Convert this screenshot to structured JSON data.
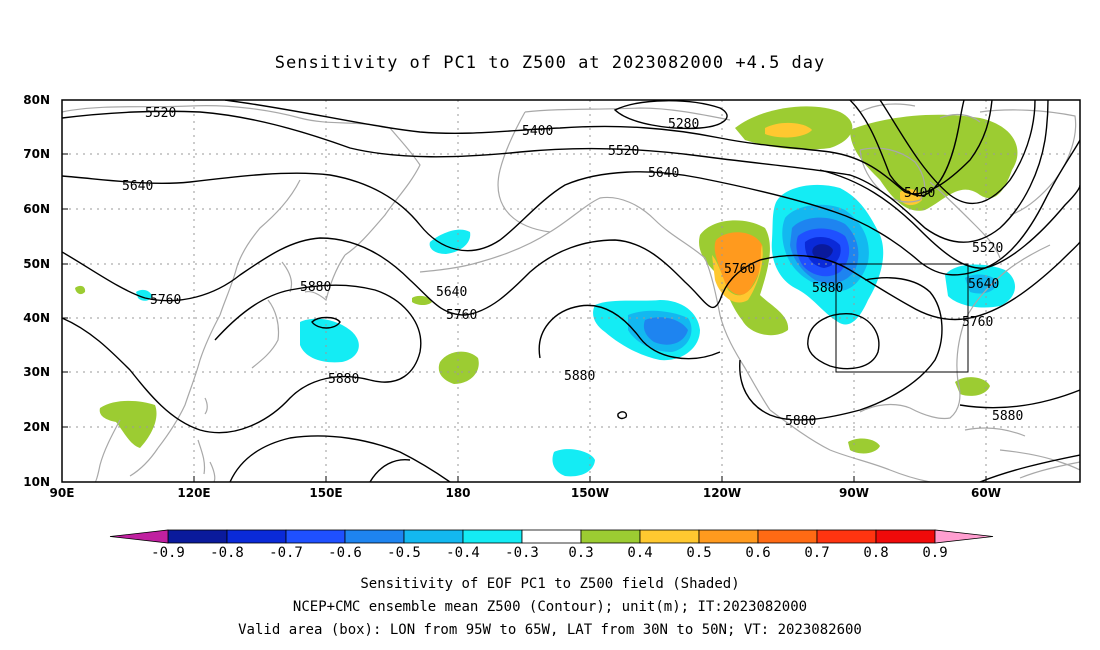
{
  "title": "Sensitivity of PC1 to Z500 at 2023082000 +4.5 day",
  "lat_labels": [
    "80N",
    "70N",
    "60N",
    "50N",
    "40N",
    "30N",
    "20N",
    "10N"
  ],
  "lon_labels": [
    "90E",
    "120E",
    "150E",
    "180",
    "150W",
    "120W",
    "90W",
    "60W"
  ],
  "contour_labels": [
    "5520",
    "5400",
    "5280",
    "5520",
    "5640",
    "5640",
    "5400",
    "5520",
    "5760",
    "5880",
    "5640",
    "5760",
    "5880",
    "5760",
    "5640",
    "5760",
    "5880",
    "5880",
    "5880",
    "5880"
  ],
  "colorbar": {
    "labels": [
      "-0.9",
      "-0.8",
      "-0.7",
      "-0.6",
      "-0.5",
      "-0.4",
      "-0.3",
      "0.3",
      "0.4",
      "0.5",
      "0.6",
      "0.7",
      "0.8",
      "0.9"
    ],
    "colors": [
      "#0a1a9c",
      "#0a2ad8",
      "#1f50ff",
      "#1e84f0",
      "#13b8f0",
      "#14ecf4",
      "#ffffff",
      "#9ccc32",
      "#ffc830",
      "#ff9a1e",
      "#ff6a14",
      "#ff3410",
      "#f00a0a"
    ],
    "under_color": "#c020a0",
    "over_color": "#ff9ed0"
  },
  "captions": [
    "Sensitivity of EOF PC1 to Z500 field (Shaded)",
    "NCEP+CMC ensemble mean Z500 (Contour); unit(m); IT:2023082000",
    "Valid area (box): LON from 95W to 65W, LAT from 30N to 50N; VT: 2023082600"
  ],
  "valid_area": {
    "lon": [
      "95W",
      "65W"
    ],
    "lat": [
      "30N",
      "50N"
    ]
  },
  "colors": {
    "contour": "#000000",
    "coastline": "#a8a8a8",
    "grid": "#9a9a9a"
  }
}
